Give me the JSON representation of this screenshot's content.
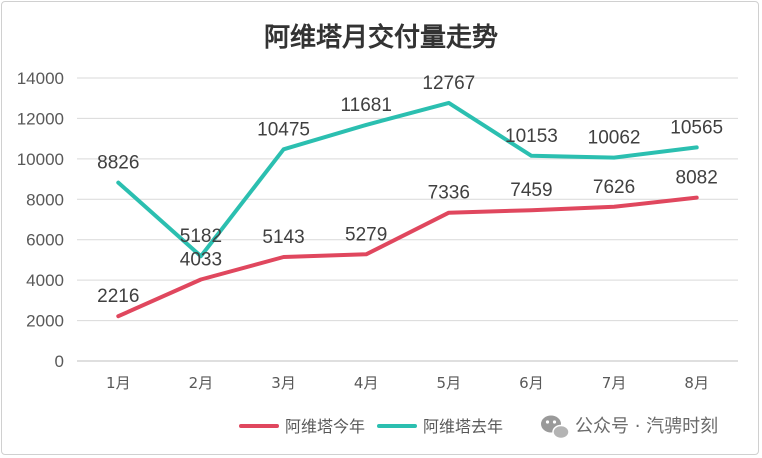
{
  "chart_data": {
    "type": "line",
    "title": "阿维塔月交付量走势",
    "categories": [
      "1月",
      "2月",
      "3月",
      "4月",
      "5月",
      "6月",
      "7月",
      "8月"
    ],
    "series": [
      {
        "name": "阿维塔今年",
        "color": "#e0475e",
        "values": [
          2216,
          4033,
          5143,
          5279,
          7336,
          7459,
          7626,
          8082
        ]
      },
      {
        "name": "阿维塔去年",
        "color": "#2bbfb0",
        "values": [
          8826,
          5182,
          10475,
          11681,
          12767,
          10153,
          10062,
          10565
        ]
      }
    ],
    "ylim": [
      0,
      14000
    ],
    "yticks": [
      0,
      2000,
      4000,
      6000,
      8000,
      10000,
      12000,
      14000
    ],
    "grid": true,
    "legend_position": "bottom"
  },
  "watermark": {
    "text": "公众号 · 汽骋时刻",
    "icon": "wechat-icon"
  }
}
